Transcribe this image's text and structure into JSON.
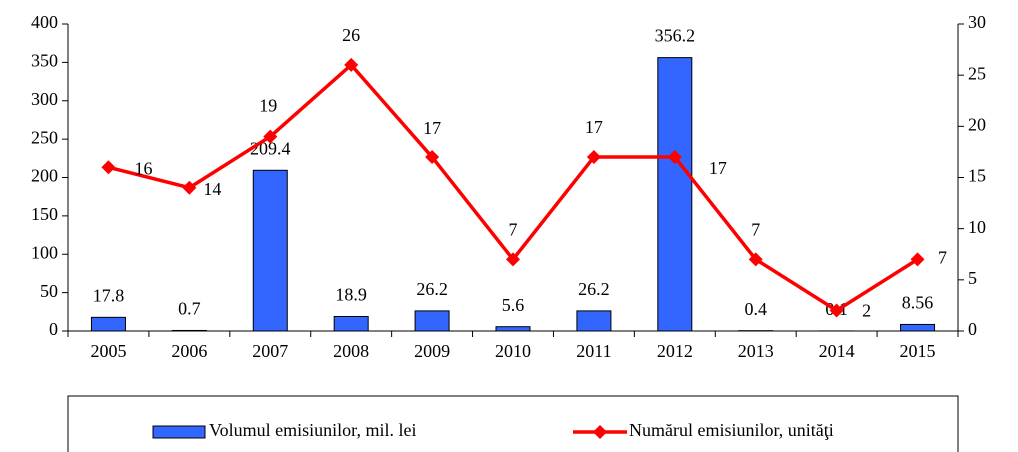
{
  "chart_data": {
    "type": "bar",
    "categories": [
      "2005",
      "2006",
      "2007",
      "2008",
      "2009",
      "2010",
      "2011",
      "2012",
      "2013",
      "2014",
      "2015"
    ],
    "series": [
      {
        "name": "Volumul emisiunilor, mil. lei",
        "type": "bar",
        "color": "#3366ff",
        "axis": "y",
        "values": [
          17.8,
          0.7,
          209.4,
          18.9,
          26.2,
          5.6,
          26.2,
          356.2,
          0.4,
          0.1,
          8.56
        ]
      },
      {
        "name": "Numărul emisiunilor, unităţi",
        "type": "line",
        "color": "#ff0000",
        "axis": "y2",
        "values": [
          16,
          14,
          19,
          26,
          17,
          7,
          17,
          17,
          7,
          2,
          7
        ]
      }
    ],
    "ylim": [
      0,
      400
    ],
    "yticks": [
      0,
      50,
      100,
      150,
      200,
      250,
      300,
      350,
      400
    ],
    "y2lim": [
      0,
      30
    ],
    "y2ticks": [
      0,
      5,
      10,
      15,
      20,
      25,
      30
    ],
    "legend": "bottom"
  }
}
